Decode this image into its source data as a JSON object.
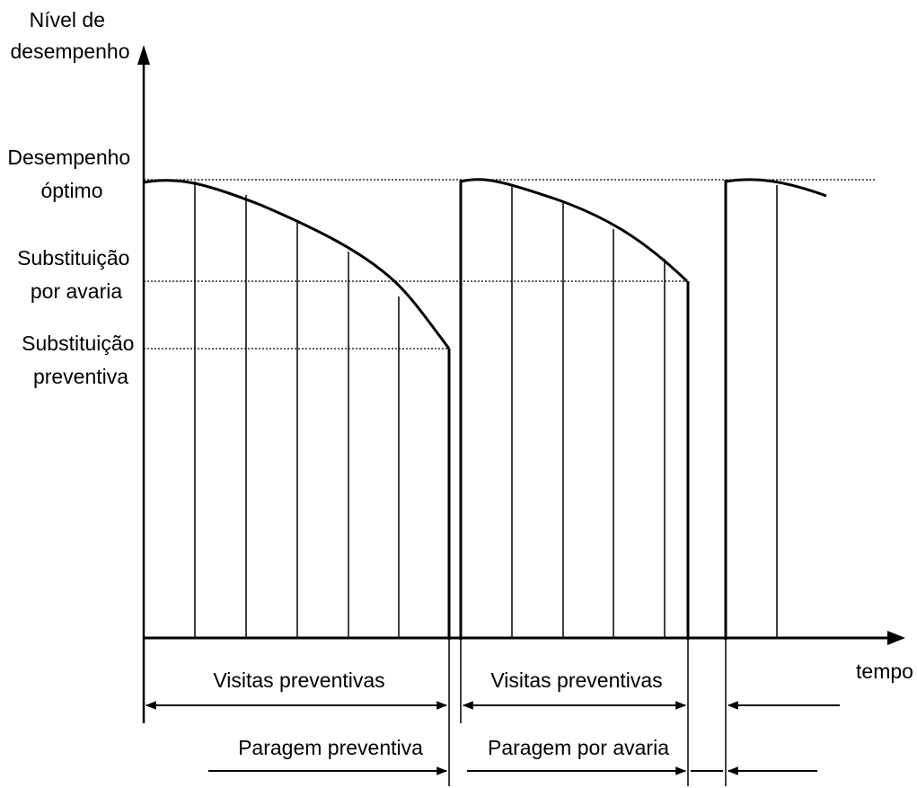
{
  "y_axis_title": [
    "Nível de",
    "desempenho"
  ],
  "x_axis_title": "tempo",
  "levels": {
    "optimo": [
      "Desempenho",
      "óptimo"
    ],
    "substituicao_avaria": [
      "Substituição",
      "por avaria"
    ],
    "substituicao_preventiva": [
      "Substituição",
      "preventiva"
    ]
  },
  "spans": {
    "visitas_1": "Visitas preventivas",
    "visitas_2": "Visitas preventivas",
    "paragem_preventiva": "Paragem preventiva",
    "paragem_avaria": "Paragem por avaria"
  },
  "colors": {
    "ink": "#000000"
  }
}
